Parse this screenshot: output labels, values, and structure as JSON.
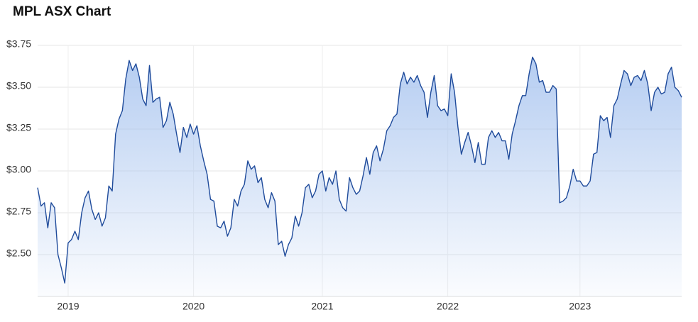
{
  "chart_data": {
    "type": "area",
    "title": "MPL ASX Chart",
    "categories": [
      null,
      null,
      null,
      null,
      null,
      null,
      null,
      null,
      null,
      "2019",
      null,
      null,
      null,
      null,
      null,
      null,
      null,
      null,
      null,
      null,
      null,
      null,
      null,
      null,
      null,
      null,
      null,
      null,
      null,
      null,
      null,
      null,
      null,
      null,
      null,
      null,
      null,
      null,
      null,
      null,
      null,
      null,
      null,
      null,
      null,
      null,
      "2020",
      null,
      null,
      null,
      null,
      null,
      null,
      null,
      null,
      null,
      null,
      null,
      null,
      null,
      null,
      null,
      null,
      null,
      null,
      null,
      null,
      null,
      null,
      null,
      null,
      null,
      null,
      null,
      null,
      null,
      null,
      null,
      null,
      null,
      null,
      null,
      null,
      null,
      "2021",
      null,
      null,
      null,
      null,
      null,
      null,
      null,
      null,
      null,
      null,
      null,
      null,
      null,
      null,
      null,
      null,
      null,
      null,
      null,
      null,
      null,
      null,
      null,
      null,
      null,
      null,
      null,
      null,
      null,
      null,
      null,
      null,
      null,
      null,
      null,
      null,
      "2022",
      null,
      null,
      null,
      null,
      null,
      null,
      null,
      null,
      null,
      null,
      null,
      null,
      null,
      null,
      null,
      null,
      null,
      null,
      null,
      null,
      null,
      null,
      null,
      null,
      null,
      null,
      null,
      null,
      null,
      null,
      null,
      null,
      null,
      null,
      null,
      null,
      null,
      null,
      "2023",
      null,
      null,
      null,
      null,
      null,
      null,
      null,
      null,
      null,
      null,
      null,
      null,
      null,
      null,
      null,
      null,
      null,
      null,
      null,
      null,
      null,
      null,
      null,
      null,
      null,
      null,
      null,
      null,
      null,
      null
    ],
    "values": [
      2.9,
      2.79,
      2.81,
      2.66,
      2.81,
      2.78,
      2.5,
      2.42,
      2.33,
      2.57,
      2.59,
      2.64,
      2.59,
      2.75,
      2.84,
      2.88,
      2.77,
      2.71,
      2.75,
      2.67,
      2.72,
      2.91,
      2.88,
      3.22,
      3.31,
      3.36,
      3.55,
      3.66,
      3.6,
      3.64,
      3.56,
      3.43,
      3.39,
      3.63,
      3.41,
      3.43,
      3.44,
      3.26,
      3.3,
      3.41,
      3.34,
      3.22,
      3.11,
      3.26,
      3.2,
      3.28,
      3.22,
      3.27,
      3.15,
      3.06,
      2.98,
      2.83,
      2.82,
      2.67,
      2.66,
      2.7,
      2.61,
      2.66,
      2.83,
      2.79,
      2.88,
      2.92,
      3.06,
      3.01,
      3.03,
      2.93,
      2.96,
      2.83,
      2.78,
      2.87,
      2.82,
      2.56,
      2.58,
      2.49,
      2.56,
      2.6,
      2.73,
      2.67,
      2.75,
      2.9,
      2.92,
      2.84,
      2.88,
      2.98,
      3.0,
      2.88,
      2.96,
      2.92,
      3.0,
      2.83,
      2.78,
      2.76,
      2.96,
      2.9,
      2.86,
      2.88,
      2.97,
      3.08,
      2.98,
      3.11,
      3.15,
      3.06,
      3.13,
      3.24,
      3.27,
      3.32,
      3.34,
      3.52,
      3.59,
      3.52,
      3.56,
      3.53,
      3.57,
      3.51,
      3.47,
      3.32,
      3.47,
      3.57,
      3.39,
      3.36,
      3.37,
      3.33,
      3.58,
      3.47,
      3.26,
      3.1,
      3.17,
      3.23,
      3.15,
      3.05,
      3.17,
      3.04,
      3.04,
      3.2,
      3.24,
      3.2,
      3.23,
      3.18,
      3.18,
      3.07,
      3.22,
      3.3,
      3.39,
      3.45,
      3.45,
      3.58,
      3.68,
      3.64,
      3.53,
      3.54,
      3.47,
      3.47,
      3.51,
      3.49,
      2.81,
      2.82,
      2.84,
      2.91,
      3.01,
      2.94,
      2.94,
      2.91,
      2.91,
      2.94,
      3.1,
      3.11,
      3.33,
      3.3,
      3.32,
      3.2,
      3.39,
      3.43,
      3.52,
      3.6,
      3.58,
      3.51,
      3.56,
      3.57,
      3.54,
      3.6,
      3.52,
      3.36,
      3.47,
      3.5,
      3.46,
      3.47,
      3.58,
      3.62,
      3.5,
      3.48,
      3.44
    ],
    "color": "#1f4b9b",
    "fill_color": "#a8c4ef",
    "ylim": [
      2.25,
      3.75
    ],
    "yticks": [
      {
        "value": 2.5,
        "label": "$2.50"
      },
      {
        "value": 2.75,
        "label": "$2.75"
      },
      {
        "value": 3,
        "label": "$3.00"
      },
      {
        "value": 3.25,
        "label": "$3.25"
      },
      {
        "value": 3.5,
        "label": "$3.50"
      },
      {
        "value": 3.75,
        "label": "$3.75"
      }
    ],
    "grid": true
  }
}
